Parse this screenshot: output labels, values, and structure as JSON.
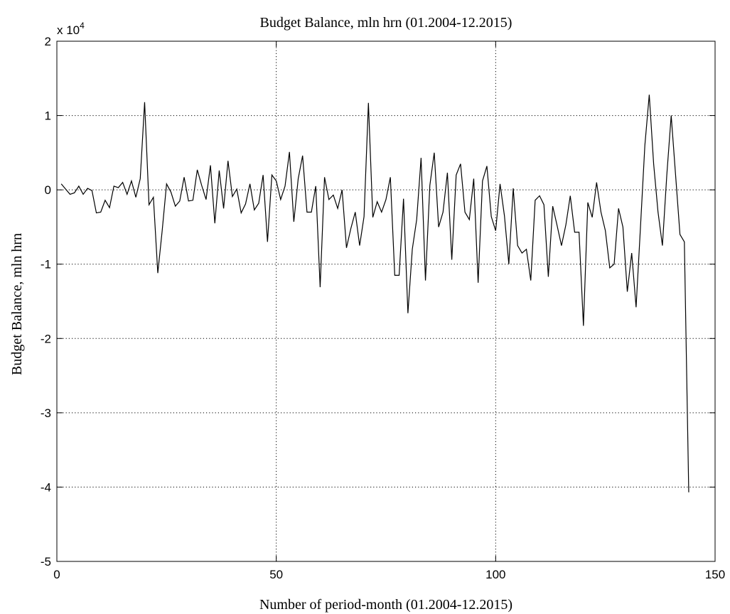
{
  "chart_data": {
    "type": "line",
    "title": "Budget Balance, mln hrn (01.2004-12.2015)",
    "xlabel": "Number of period-month (01.2004-12.2015)",
    "ylabel": "Budget Balance, mln hrn",
    "y_multiplier": "x 10",
    "y_multiplier_exp": "4",
    "xlim": [
      0,
      150
    ],
    "ylim": [
      -5,
      2
    ],
    "xticks": [
      0,
      50,
      100,
      150
    ],
    "yticks": [
      2,
      1,
      0,
      -1,
      -2,
      -3,
      -4,
      -5
    ],
    "grid": true,
    "line_color": "#000000",
    "series": [
      {
        "x": [
          1,
          2,
          3,
          4,
          5,
          6,
          7,
          8,
          9,
          10,
          11,
          12,
          13,
          14,
          15,
          16,
          17,
          18,
          19,
          20,
          21,
          22,
          23,
          24,
          25,
          26,
          27,
          28,
          29,
          30,
          31,
          32,
          33,
          34,
          35,
          36,
          37,
          38,
          39,
          40,
          41,
          42,
          43,
          44,
          45,
          46,
          47,
          48,
          49,
          50,
          51,
          52,
          53,
          54,
          55,
          56,
          57,
          58,
          59,
          60,
          61,
          62,
          63,
          64,
          65,
          66,
          67,
          68,
          69,
          70,
          71,
          72,
          73,
          74,
          75,
          76,
          77,
          78,
          79,
          80,
          81,
          82,
          83,
          84,
          85,
          86,
          87,
          88,
          89,
          90,
          91,
          92,
          93,
          94,
          95,
          96,
          97,
          98,
          99,
          100,
          101,
          102,
          103,
          104,
          105,
          106,
          107,
          108,
          109,
          110,
          111,
          112,
          113,
          114,
          115,
          116,
          117,
          118,
          119,
          120,
          121,
          122,
          123,
          124,
          125,
          126,
          127,
          128,
          129,
          130,
          131,
          132,
          133,
          134,
          135,
          136,
          137,
          138,
          139,
          140,
          141,
          142,
          143,
          144
        ],
        "y": [
          0.08,
          0.01,
          -0.06,
          -0.04,
          0.05,
          -0.06,
          0.02,
          -0.01,
          -0.31,
          -0.3,
          -0.14,
          -0.24,
          0.05,
          0.03,
          0.1,
          -0.06,
          0.12,
          -0.1,
          0.15,
          1.18,
          -0.2,
          -0.1,
          -1.12,
          -0.55,
          0.08,
          -0.03,
          -0.22,
          -0.15,
          0.17,
          -0.15,
          -0.14,
          0.27,
          0.06,
          -0.13,
          0.33,
          -0.45,
          0.26,
          -0.25,
          0.39,
          -0.09,
          0.01,
          -0.31,
          -0.19,
          0.08,
          -0.27,
          -0.18,
          0.2,
          -0.7,
          0.2,
          0.12,
          -0.13,
          0.05,
          0.51,
          -0.43,
          0.15,
          0.46,
          -0.3,
          -0.3,
          0.05,
          -1.31,
          0.17,
          -0.13,
          -0.07,
          -0.25,
          0.0,
          -0.78,
          -0.52,
          -0.3,
          -0.75,
          -0.36,
          1.17,
          -0.37,
          -0.16,
          -0.3,
          -0.13,
          0.17,
          -1.15,
          -1.15,
          -0.12,
          -1.66,
          -0.8,
          -0.4,
          0.43,
          -1.22,
          0.06,
          0.5,
          -0.5,
          -0.3,
          0.23,
          -0.94,
          0.2,
          0.35,
          -0.3,
          -0.4,
          0.15,
          -1.25,
          0.12,
          0.32,
          -0.36,
          -0.55,
          0.08,
          -0.35,
          -1.0,
          0.02,
          -0.75,
          -0.85,
          -0.8,
          -1.22,
          -0.14,
          -0.08,
          -0.2,
          -1.17,
          -0.22,
          -0.48,
          -0.75,
          -0.47,
          -0.08,
          -0.57,
          -0.57,
          -1.83,
          -0.17,
          -0.37,
          0.1,
          -0.3,
          -0.55,
          -1.05,
          -1.0,
          -0.25,
          -0.5,
          -1.37,
          -0.85,
          -1.58,
          -0.5,
          0.6,
          1.28,
          0.35,
          -0.3,
          -0.75,
          0.2,
          1.0,
          0.2,
          -0.6,
          -0.7,
          -4.07
        ]
      }
    ]
  }
}
